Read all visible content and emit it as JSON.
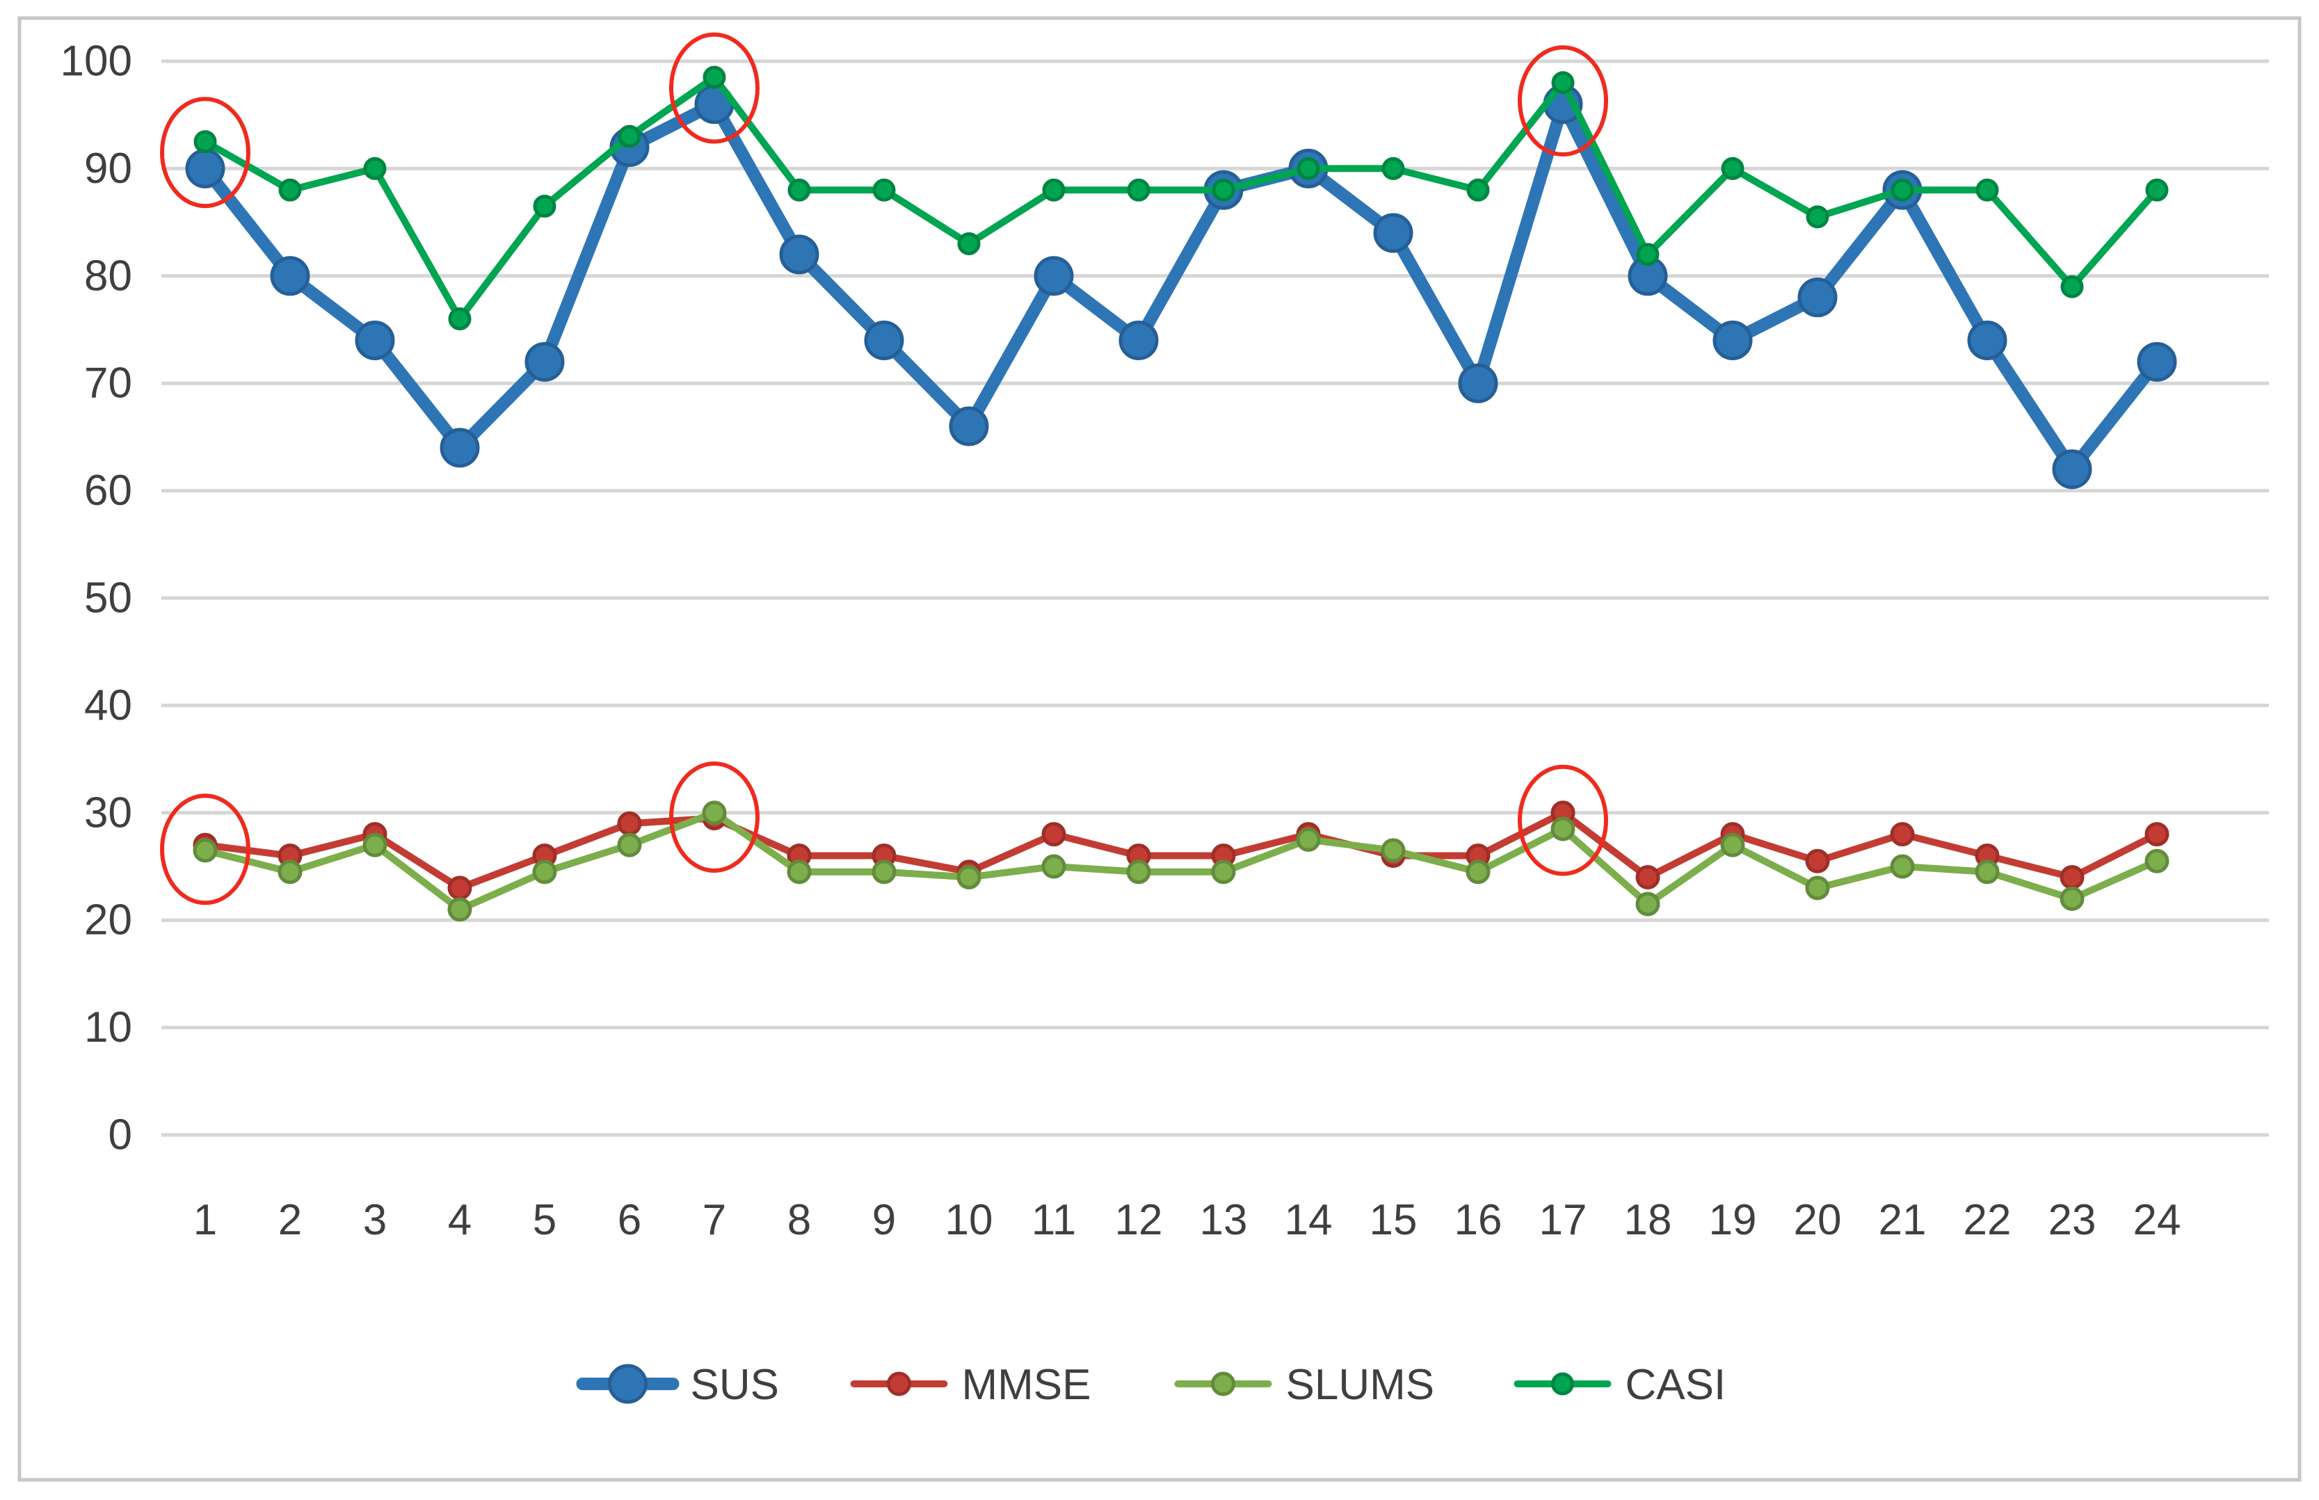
{
  "chart_data": {
    "type": "line",
    "title": "",
    "xlabel": "",
    "ylabel": "",
    "categories": [
      1,
      2,
      3,
      4,
      5,
      6,
      7,
      8,
      9,
      10,
      11,
      12,
      13,
      14,
      15,
      16,
      17,
      18,
      19,
      20,
      21,
      22,
      23,
      24
    ],
    "series": [
      {
        "name": "SUS",
        "color": "#2E75B6",
        "marker_stroke": "#255F96",
        "line_width": 18,
        "marker_radius": 26,
        "values": [
          90,
          80,
          74,
          64,
          72,
          92,
          96,
          82,
          74,
          66,
          80,
          74,
          88,
          90,
          84,
          70,
          96,
          80,
          74,
          78,
          88,
          74,
          62,
          72
        ]
      },
      {
        "name": "MMSE",
        "color": "#C33C33",
        "marker_stroke": "#9E2F28",
        "line_width": 10,
        "marker_radius": 15,
        "values": [
          27,
          26,
          28,
          23,
          26,
          29,
          29.5,
          26,
          26,
          24.5,
          28,
          26,
          26,
          28,
          26,
          26,
          30,
          24,
          28,
          25.5,
          28,
          26,
          24,
          28
        ]
      },
      {
        "name": "SLUMS",
        "color": "#7CAE4B",
        "marker_stroke": "#638B3C",
        "line_width": 10,
        "marker_radius": 15,
        "values": [
          26.5,
          24.5,
          27,
          21,
          24.5,
          27,
          30,
          24.5,
          24.5,
          24,
          25,
          24.5,
          24.5,
          27.5,
          26.5,
          24.5,
          28.5,
          21.5,
          27,
          23,
          25,
          24.5,
          22,
          25.5
        ]
      },
      {
        "name": "CASI",
        "color": "#00A551",
        "marker_stroke": "#008542",
        "line_width": 10,
        "marker_radius": 14,
        "values": [
          92.5,
          88,
          90,
          76,
          86.5,
          93,
          98.5,
          88,
          88,
          83,
          88,
          88,
          88,
          90,
          90,
          88,
          98,
          82,
          90,
          85.5,
          88,
          88,
          79,
          88
        ]
      }
    ],
    "ylim": [
      0,
      100
    ],
    "ytick_step": 10,
    "y_ticks": [
      0,
      10,
      20,
      30,
      40,
      50,
      60,
      70,
      80,
      90,
      100
    ],
    "grid": "horizontal",
    "gridline_color": "#D6D6D6",
    "frame_color": "#C6C6C6",
    "tick_label_color": "#3F3F3F",
    "legend_position": "bottom",
    "legend_labels": [
      "SUS",
      "MMSE",
      "SLUMS",
      "CASI"
    ],
    "annotations": [
      {
        "shape": "ellipse",
        "category": 1,
        "value": 91.5,
        "color": "#EF2B1E"
      },
      {
        "shape": "ellipse",
        "category": 7,
        "value": 97.5,
        "color": "#EF2B1E"
      },
      {
        "shape": "ellipse",
        "category": 17,
        "value": 96.3,
        "color": "#EF2B1E"
      },
      {
        "shape": "ellipse",
        "category": 1,
        "value": 26.6,
        "color": "#EF2B1E"
      },
      {
        "shape": "ellipse",
        "category": 7,
        "value": 29.6,
        "color": "#EF2B1E"
      },
      {
        "shape": "ellipse",
        "category": 17,
        "value": 29.3,
        "color": "#EF2B1E"
      }
    ]
  }
}
